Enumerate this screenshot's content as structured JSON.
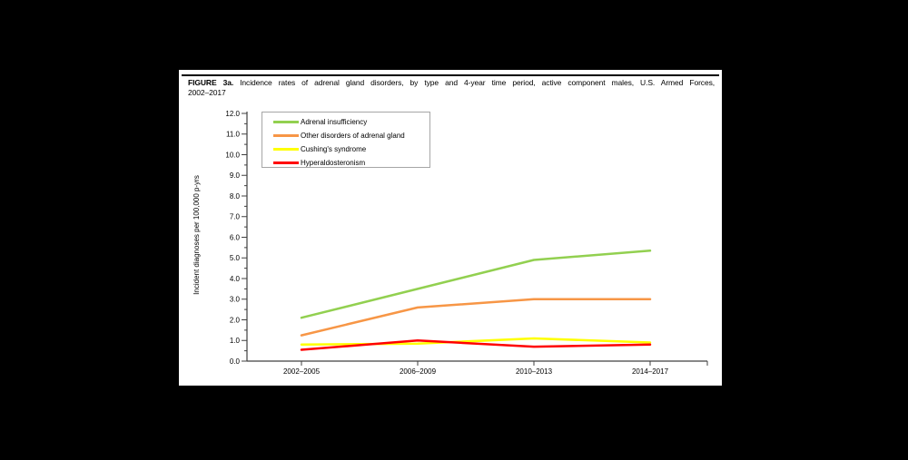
{
  "figure": {
    "caption_bold": "FIGURE 3a.",
    "caption_rest": " Incidence rates of adrenal gland disorders, by type and 4-year time period, active component males, U.S. Armed Forces,",
    "caption_line2": "2002–2017"
  },
  "chart_data": {
    "type": "line",
    "title": "FIGURE 3a. Incidence rates of adrenal gland disorders, by type and 4-year time period, active component males, U.S. Armed Forces, 2002–2017",
    "categories": [
      "2002–2005",
      "2006–2009",
      "2010–2013",
      "2014–2017"
    ],
    "series": [
      {
        "name": "Adrenal insufficiency",
        "color": "#92D050",
        "values": [
          2.1,
          3.5,
          4.9,
          5.35
        ]
      },
      {
        "name": "Other disorders of adrenal gland",
        "color": "#F79646",
        "values": [
          1.25,
          2.6,
          3.0,
          3.0
        ]
      },
      {
        "name": "Cushing's syndrome",
        "color": "#FFFF00",
        "values": [
          0.8,
          0.85,
          1.1,
          0.9
        ]
      },
      {
        "name": "Hyperaldosteronism",
        "color": "#FF0000",
        "values": [
          0.55,
          1.0,
          0.7,
          0.8
        ]
      }
    ],
    "xlabel": "",
    "ylabel": "Incident diagnoses per 100,000 p-yrs",
    "ylim": [
      0,
      12
    ],
    "ytick_step": 1.0,
    "ytick_minor_step": 0.5,
    "ytick_labels": [
      "0.0",
      "1.0",
      "2.0",
      "3.0",
      "4.0",
      "5.0",
      "6.0",
      "7.0",
      "8.0",
      "9.0",
      "10.0",
      "11.0",
      "12.0"
    ],
    "grid": false,
    "legend_position": "top-left-inside",
    "axis_color": "#404040"
  }
}
